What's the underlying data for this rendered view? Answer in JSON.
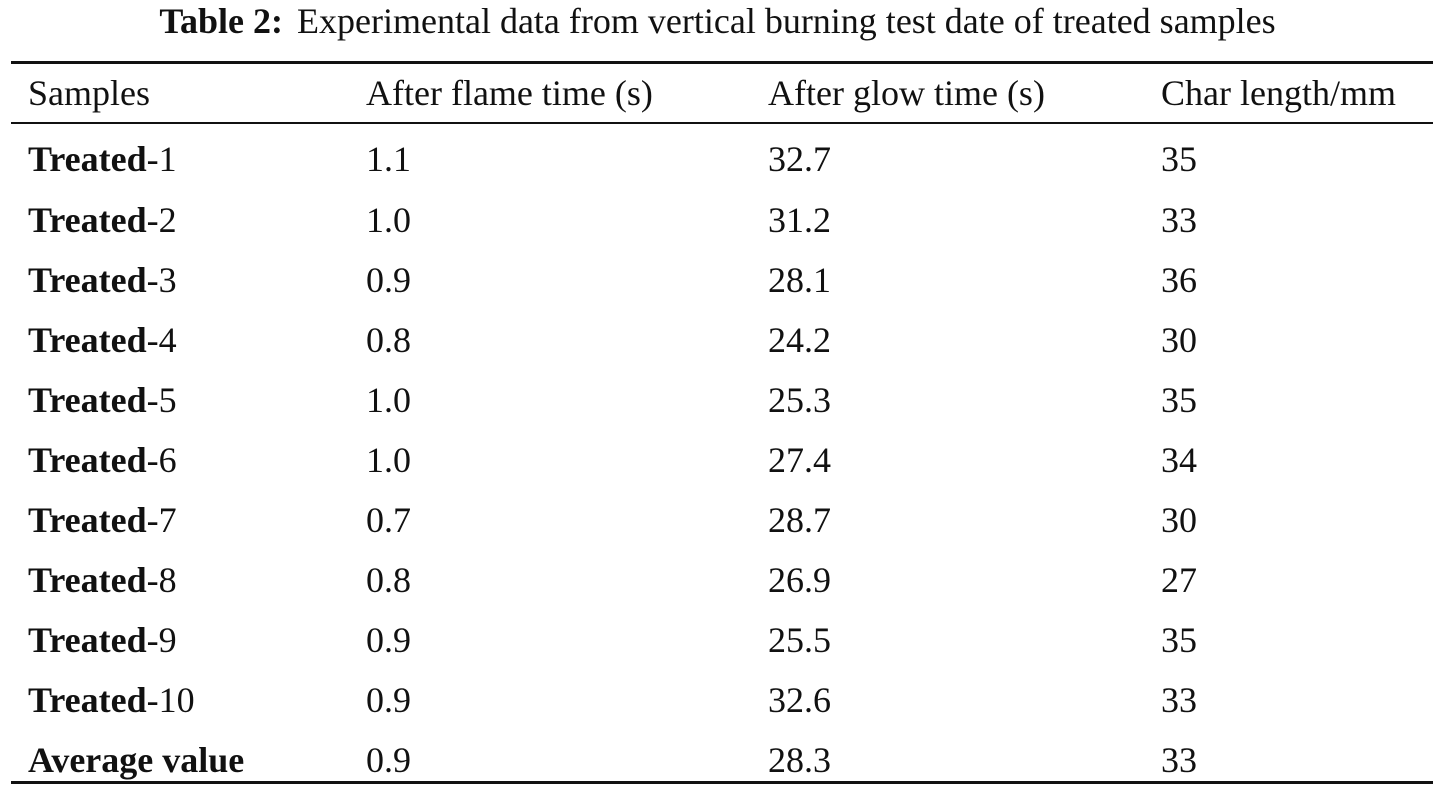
{
  "caption": {
    "label": "Table 2:",
    "text": "Experimental data from vertical burning test date of treated samples"
  },
  "table": {
    "headers": [
      "Samples",
      "After flame time (s)",
      "After glow time (s)",
      "Char length/mm"
    ],
    "rows": [
      {
        "name_bold": "Treated",
        "name_suffix": "-1",
        "after_flame": "1.1",
        "after_glow": "32.7",
        "char_length": "35"
      },
      {
        "name_bold": "Treated",
        "name_suffix": "-2",
        "after_flame": "1.0",
        "after_glow": "31.2",
        "char_length": "33"
      },
      {
        "name_bold": "Treated",
        "name_suffix": "-3",
        "after_flame": "0.9",
        "after_glow": "28.1",
        "char_length": "36"
      },
      {
        "name_bold": "Treated",
        "name_suffix": "-4",
        "after_flame": "0.8",
        "after_glow": "24.2",
        "char_length": "30"
      },
      {
        "name_bold": "Treated",
        "name_suffix": "-5",
        "after_flame": "1.0",
        "after_glow": "25.3",
        "char_length": "35"
      },
      {
        "name_bold": "Treated",
        "name_suffix": "-6",
        "after_flame": "1.0",
        "after_glow": "27.4",
        "char_length": "34"
      },
      {
        "name_bold": "Treated",
        "name_suffix": "-7",
        "after_flame": "0.7",
        "after_glow": "28.7",
        "char_length": "30"
      },
      {
        "name_bold": "Treated",
        "name_suffix": "-8",
        "after_flame": "0.8",
        "after_glow": "26.9",
        "char_length": "27"
      },
      {
        "name_bold": "Treated",
        "name_suffix": "-9",
        "after_flame": "0.9",
        "after_glow": "25.5",
        "char_length": "35"
      },
      {
        "name_bold": "Treated",
        "name_suffix": "-10",
        "after_flame": "0.9",
        "after_glow": "32.6",
        "char_length": "33"
      },
      {
        "name_bold": "Average value",
        "name_suffix": "",
        "after_flame": "0.9",
        "after_glow": "28.3",
        "char_length": "33"
      }
    ]
  }
}
